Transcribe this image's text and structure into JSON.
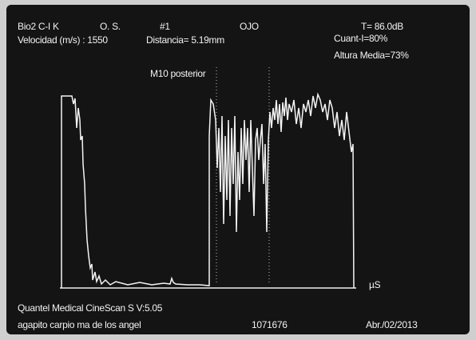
{
  "header": {
    "probe": "Bio2 C-I K",
    "eye": "O. S.",
    "number": "#1",
    "mode": "OJO",
    "gain": "T= 86.0dB",
    "velocity": "Velocidad (m/s) : 1550",
    "distance": "Distancia=  5.19mm",
    "quant": "Cuant-I=80%",
    "mean_height": "Altura Media=73%"
  },
  "marker": "M10 posterior",
  "axis_unit": "µS",
  "footer": {
    "device": "Quantel Medical CineScan S V:5.05",
    "patient": "agapito carpio ma de los angel",
    "id": "1071676",
    "date": "Abr./02/2013"
  }
}
